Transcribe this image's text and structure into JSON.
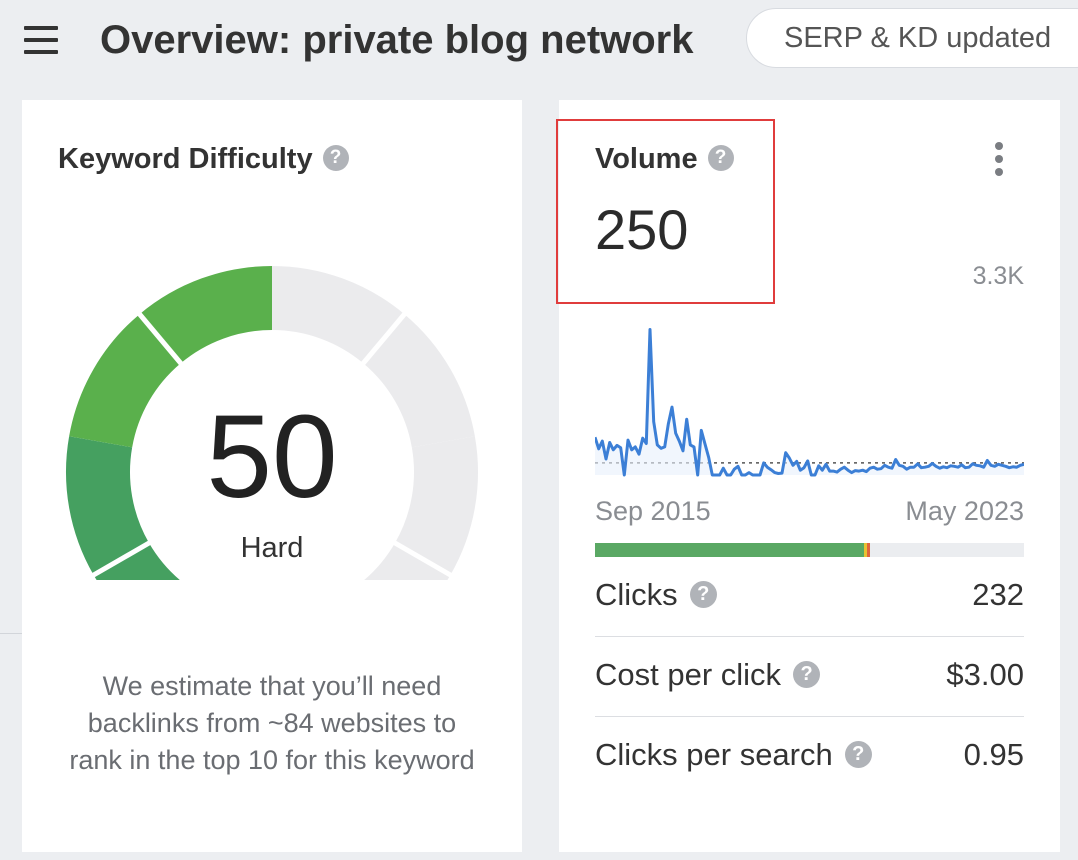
{
  "header": {
    "menu_icon": "hamburger-menu-icon",
    "title": "Overview: private blog network",
    "update_badge": "SERP & KD updated"
  },
  "keyword_difficulty": {
    "title": "Keyword Difficulty",
    "help_icon": "question-circle-icon",
    "score": "50",
    "level": "Hard",
    "score_fraction": 0.5,
    "segment_colors": [
      "#45a060",
      "#5ab04c",
      "#9dc53a",
      "#d6c13a"
    ],
    "empty_color": "#ebebed",
    "description": "We estimate that you’ll need backlinks from ~84 websites to rank in the top 10 for this keyword"
  },
  "volume": {
    "title": "Volume",
    "help_icon": "question-circle-icon",
    "more_icon": "more-vertical-icon",
    "value": "250",
    "chart_max_label": "3.3K",
    "date_start": "Sep 2015",
    "date_end": "May 2023",
    "clicks_split": {
      "organic_color": "#5aa864",
      "paid_colors": [
        "#e8c232",
        "#e0653c"
      ],
      "organic_fraction": 0.628,
      "paid_fractions": [
        0.006,
        0.006
      ]
    },
    "metrics": [
      {
        "label": "Clicks",
        "value": "232"
      },
      {
        "label": "Cost per click",
        "value": "$3.00"
      },
      {
        "label": "Clicks per search",
        "value": "0.95"
      }
    ]
  },
  "chart_data": {
    "type": "line",
    "title": "",
    "x_range": [
      "Sep 2015",
      "May 2023"
    ],
    "ylim": [
      0,
      3300
    ],
    "y_max_label": "3.3K",
    "reference_line_value": 250,
    "line_color": "#3c7fd6",
    "values": [
      780,
      540,
      700,
      330,
      670,
      520,
      610,
      560,
      0,
      720,
      520,
      580,
      430,
      760,
      650,
      3000,
      1100,
      620,
      550,
      580,
      1050,
      1400,
      860,
      700,
      500,
      1150,
      620,
      580,
      0,
      920,
      640,
      360,
      0,
      0,
      0,
      140,
      0,
      0,
      120,
      180,
      0,
      0,
      50,
      0,
      0,
      0,
      250,
      160,
      110,
      50,
      30,
      40,
      460,
      350,
      200,
      280,
      100,
      150,
      290,
      0,
      0,
      190,
      100,
      220,
      80,
      80,
      60,
      120,
      160,
      100,
      50,
      90,
      80,
      100,
      70,
      140,
      160,
      120,
      130,
      200,
      160,
      140,
      320,
      200,
      180,
      120,
      160,
      160,
      230,
      150,
      160,
      180,
      240,
      180,
      140,
      170,
      150,
      190,
      180,
      160,
      210,
      150,
      160,
      230,
      200,
      190,
      160,
      300,
      200,
      180,
      220,
      200,
      180,
      150,
      170,
      160,
      200,
      220
    ]
  }
}
